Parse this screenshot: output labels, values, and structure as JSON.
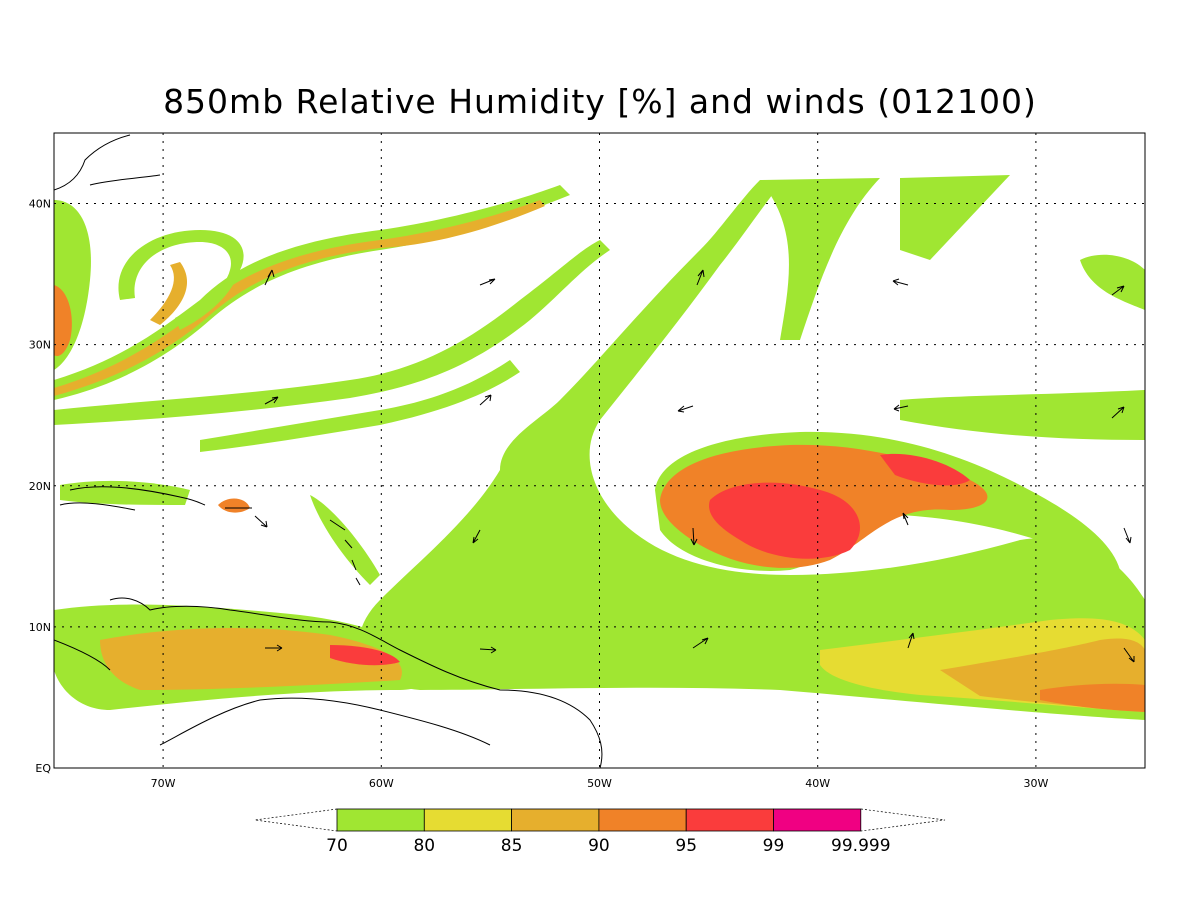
{
  "title": "850mb Relative Humidity [%] and winds (012100)",
  "map": {
    "lon_range": [
      -75,
      -25
    ],
    "lat_range": [
      0,
      45
    ],
    "lon_ticks": [
      {
        "lon": -70,
        "label": "70W"
      },
      {
        "lon": -60,
        "label": "60W"
      },
      {
        "lon": -50,
        "label": "50W"
      },
      {
        "lon": -40,
        "label": "40W"
      },
      {
        "lon": -30,
        "label": "30W"
      }
    ],
    "lat_ticks": [
      {
        "lat": 0,
        "label": "EQ"
      },
      {
        "lat": 10,
        "label": "10N"
      },
      {
        "lat": 20,
        "label": "20N"
      },
      {
        "lat": 30,
        "label": "30N"
      },
      {
        "lat": 40,
        "label": "40N"
      }
    ],
    "gridlines": true
  },
  "colorbar": {
    "labels": [
      "70",
      "80",
      "85",
      "90",
      "95",
      "99",
      "99.999"
    ],
    "colors": [
      "#a0e632",
      "#e6dc32",
      "#e6af2d",
      "#f08228",
      "#fa3c3c",
      "#f00082"
    ]
  }
}
